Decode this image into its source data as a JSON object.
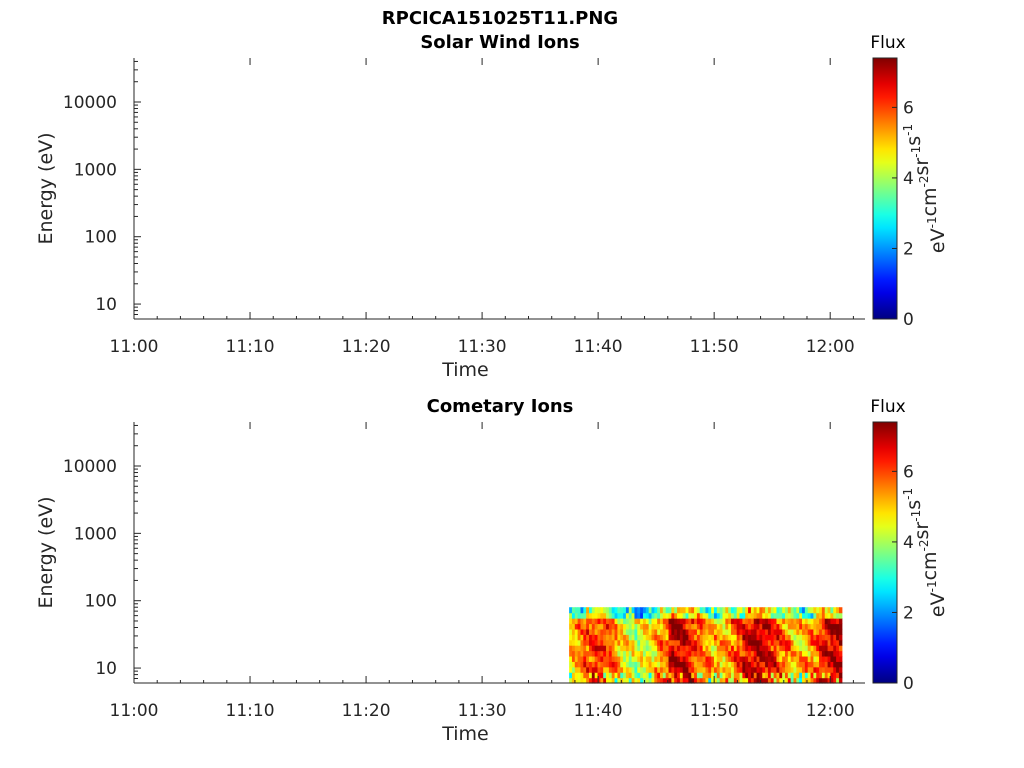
{
  "figure_title": "RPCICA151025T11.PNG",
  "chart_data": [
    {
      "type": "heatmap",
      "title": "Solar Wind Ions",
      "xlabel": "Time",
      "ylabel": "Energy (eV)",
      "xlim": [
        "11:00",
        "12:03"
      ],
      "ylim": [
        6,
        45000
      ],
      "yscale": "log",
      "xticks": [
        "11:00",
        "11:10",
        "11:20",
        "11:30",
        "11:40",
        "11:50",
        "12:00"
      ],
      "yticks": [
        "10",
        "100",
        "1000",
        "10000"
      ],
      "colorbar": {
        "label": "Flux",
        "unit": "eV-1cm-2sr-1s-1",
        "unit_parts": [
          [
            "eV",
            "-1"
          ],
          [
            "cm",
            "-2"
          ],
          [
            "sr",
            "-1"
          ],
          [
            "s",
            "-1"
          ]
        ],
        "range": [
          0,
          7.4
        ],
        "ticks": [
          "0",
          "2",
          "4",
          "6"
        ],
        "colormap": "jet"
      },
      "data_region": null
    },
    {
      "type": "heatmap",
      "title": "Cometary Ions",
      "xlabel": "Time",
      "ylabel": "Energy (eV)",
      "xlim": [
        "11:00",
        "12:03"
      ],
      "ylim": [
        6,
        45000
      ],
      "yscale": "log",
      "xticks": [
        "11:00",
        "11:10",
        "11:20",
        "11:30",
        "11:40",
        "11:50",
        "12:00"
      ],
      "yticks": [
        "10",
        "100",
        "1000",
        "10000"
      ],
      "colorbar": {
        "label": "Flux",
        "unit": "eV-1cm-2sr-1s-1",
        "unit_parts": [
          [
            "eV",
            "-1"
          ],
          [
            "cm",
            "-2"
          ],
          [
            "sr",
            "-1"
          ],
          [
            "s",
            "-1"
          ]
        ],
        "range": [
          0,
          7.4
        ],
        "ticks": [
          "0",
          "2",
          "4",
          "6"
        ],
        "colormap": "jet"
      },
      "data_region": {
        "time_start": "11:37.5",
        "time_end": "12:01",
        "energy_min": 6,
        "energy_max": 80,
        "typical_flux_range": [
          3,
          7
        ]
      }
    }
  ]
}
